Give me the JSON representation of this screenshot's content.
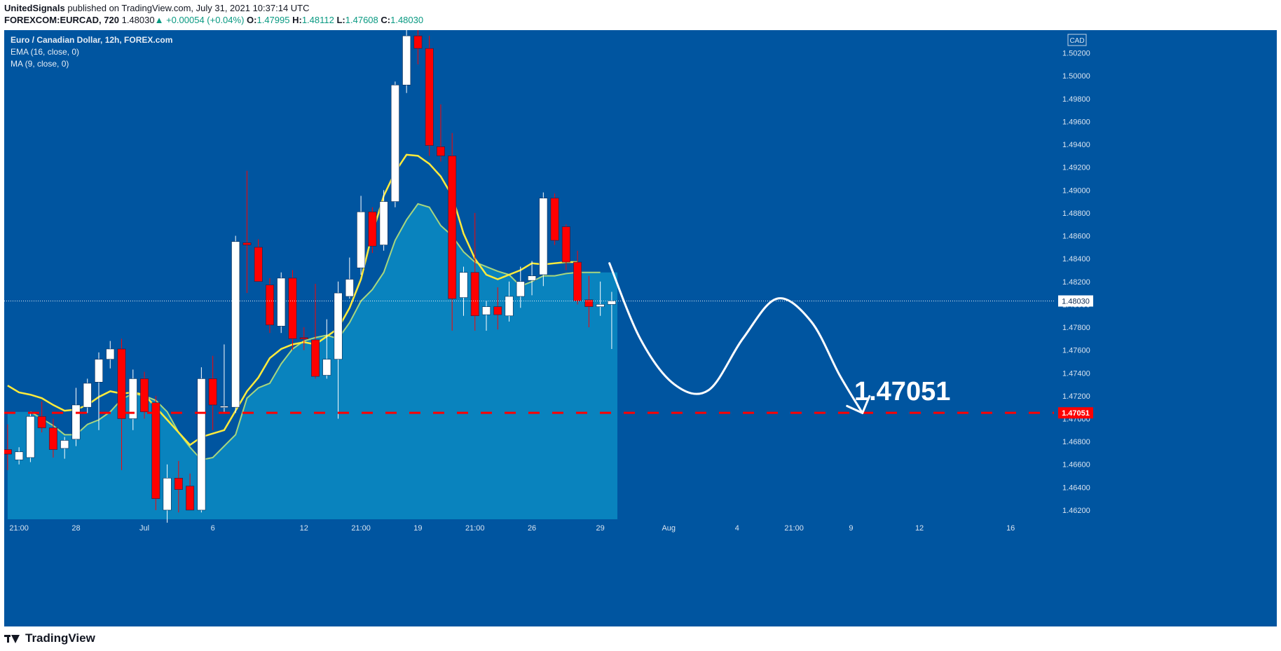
{
  "header": {
    "publisher": "UnitedSignals",
    "published_text": "published on TradingView.com, July 31, 2021 10:37:14 UTC"
  },
  "ohlc": {
    "symbol": "FOREXCOM:EURCAD, 720",
    "last": "1.48030",
    "arrow": "▲",
    "change": "+0.00054 (+0.04%)",
    "o_label": "O:",
    "o": "1.47995",
    "h_label": "H:",
    "h": "1.48112",
    "l_label": "L:",
    "l": "1.47608",
    "c_label": "C:",
    "c": "1.48030"
  },
  "legend": {
    "title": "Euro / Canadian Dollar, 12h, FOREX.com",
    "ema": "EMA (16, close, 0)",
    "ma": "MA (9, close, 0)"
  },
  "footer": {
    "brand": "TradingView"
  },
  "colors": {
    "background": "#0055a0",
    "area_fill": "#0a86c0",
    "up_candle": "#ffffff",
    "down_candle": "#ff0000",
    "ema_line": "#ffeb3b",
    "ma_line": "#a7d67e",
    "target_line": "#ff0000",
    "axis_text": "#d9e4f0"
  },
  "chart_data": {
    "type": "candlestick",
    "currency": "CAD",
    "ylim": [
      1.4612,
      1.504
    ],
    "y_ticks": [
      "1.46200",
      "1.46400",
      "1.46600",
      "1.46800",
      "1.47000",
      "1.47200",
      "1.47400",
      "1.47600",
      "1.47800",
      "1.48000",
      "1.48200",
      "1.48400",
      "1.48600",
      "1.48800",
      "1.49000",
      "1.49200",
      "1.49400",
      "1.49600",
      "1.49800",
      "1.50000",
      "1.50200"
    ],
    "x_ticks": [
      {
        "label": "21:00",
        "index": 1
      },
      {
        "label": "28",
        "index": 6
      },
      {
        "label": "Jul",
        "index": 12
      },
      {
        "label": "6",
        "index": 18
      },
      {
        "label": "12",
        "index": 26
      },
      {
        "label": "21:00",
        "index": 31
      },
      {
        "label": "19",
        "index": 36
      },
      {
        "label": "21:00",
        "index": 41
      },
      {
        "label": "26",
        "index": 46
      },
      {
        "label": "29",
        "index": 52
      },
      {
        "label": "Aug",
        "index": 58
      },
      {
        "label": "4",
        "index": 64
      },
      {
        "label": "21:00",
        "index": 69
      },
      {
        "label": "9",
        "index": 74
      },
      {
        "label": "12",
        "index": 80
      },
      {
        "label": "16",
        "index": 88
      }
    ],
    "x_index_range": [
      -0.3,
      91.8
    ],
    "candles": [
      {
        "o": 1.4673,
        "h": 1.4695,
        "l": 1.4655,
        "c": 1.4669
      },
      {
        "o": 1.4664,
        "h": 1.4675,
        "l": 1.466,
        "c": 1.4671
      },
      {
        "o": 1.4666,
        "h": 1.4705,
        "l": 1.4662,
        "c": 1.4702
      },
      {
        "o": 1.4702,
        "h": 1.4715,
        "l": 1.4688,
        "c": 1.4692
      },
      {
        "o": 1.4692,
        "h": 1.47,
        "l": 1.4666,
        "c": 1.4673
      },
      {
        "o": 1.4674,
        "h": 1.4684,
        "l": 1.4665,
        "c": 1.4681
      },
      {
        "o": 1.4682,
        "h": 1.4727,
        "l": 1.4676,
        "c": 1.4712
      },
      {
        "o": 1.471,
        "h": 1.4735,
        "l": 1.4705,
        "c": 1.4731
      },
      {
        "o": 1.4732,
        "h": 1.4758,
        "l": 1.469,
        "c": 1.4752
      },
      {
        "o": 1.4752,
        "h": 1.4768,
        "l": 1.4744,
        "c": 1.4761
      },
      {
        "o": 1.4761,
        "h": 1.477,
        "l": 1.4655,
        "c": 1.47
      },
      {
        "o": 1.47,
        "h": 1.4743,
        "l": 1.469,
        "c": 1.4735
      },
      {
        "o": 1.4735,
        "h": 1.4741,
        "l": 1.47,
        "c": 1.4706
      },
      {
        "o": 1.4714,
        "h": 1.472,
        "l": 1.462,
        "c": 1.463
      },
      {
        "o": 1.462,
        "h": 1.466,
        "l": 1.4609,
        "c": 1.4648
      },
      {
        "o": 1.4648,
        "h": 1.4663,
        "l": 1.4618,
        "c": 1.4638
      },
      {
        "o": 1.4641,
        "h": 1.4652,
        "l": 1.462,
        "c": 1.462
      },
      {
        "o": 1.462,
        "h": 1.4745,
        "l": 1.4618,
        "c": 1.4735
      },
      {
        "o": 1.4735,
        "h": 1.4755,
        "l": 1.469,
        "c": 1.4712
      },
      {
        "o": 1.471,
        "h": 1.4765,
        "l": 1.4705,
        "c": 1.4711
      },
      {
        "o": 1.471,
        "h": 1.486,
        "l": 1.4705,
        "c": 1.4855
      },
      {
        "o": 1.4854,
        "h": 1.4917,
        "l": 1.481,
        "c": 1.4852
      },
      {
        "o": 1.485,
        "h": 1.4857,
        "l": 1.482,
        "c": 1.482
      },
      {
        "o": 1.4817,
        "h": 1.4823,
        "l": 1.4775,
        "c": 1.4782
      },
      {
        "o": 1.4781,
        "h": 1.4828,
        "l": 1.4775,
        "c": 1.4823
      },
      {
        "o": 1.4823,
        "h": 1.483,
        "l": 1.476,
        "c": 1.477
      },
      {
        "o": 1.4771,
        "h": 1.478,
        "l": 1.476,
        "c": 1.477
      },
      {
        "o": 1.4769,
        "h": 1.4818,
        "l": 1.4735,
        "c": 1.4737
      },
      {
        "o": 1.4738,
        "h": 1.4787,
        "l": 1.4735,
        "c": 1.4752
      },
      {
        "o": 1.4752,
        "h": 1.482,
        "l": 1.47,
        "c": 1.481
      },
      {
        "o": 1.4807,
        "h": 1.4841,
        "l": 1.4805,
        "c": 1.4822
      },
      {
        "o": 1.4832,
        "h": 1.4895,
        "l": 1.4826,
        "c": 1.4881
      },
      {
        "o": 1.4881,
        "h": 1.4885,
        "l": 1.4845,
        "c": 1.4851
      },
      {
        "o": 1.4852,
        "h": 1.49,
        "l": 1.4847,
        "c": 1.489
      },
      {
        "o": 1.489,
        "h": 1.4995,
        "l": 1.4885,
        "c": 1.4992
      },
      {
        "o": 1.4992,
        "h": 1.504,
        "l": 1.4985,
        "c": 1.5035
      },
      {
        "o": 1.5035,
        "h": 1.504,
        "l": 1.501,
        "c": 1.5024
      },
      {
        "o": 1.5024,
        "h": 1.5035,
        "l": 1.493,
        "c": 1.4939
      },
      {
        "o": 1.4938,
        "h": 1.4975,
        "l": 1.4925,
        "c": 1.493
      },
      {
        "o": 1.493,
        "h": 1.495,
        "l": 1.4777,
        "c": 1.4805
      },
      {
        "o": 1.4806,
        "h": 1.4833,
        "l": 1.479,
        "c": 1.4828
      },
      {
        "o": 1.4828,
        "h": 1.488,
        "l": 1.4777,
        "c": 1.479
      },
      {
        "o": 1.4791,
        "h": 1.4803,
        "l": 1.4777,
        "c": 1.4798
      },
      {
        "o": 1.4798,
        "h": 1.4815,
        "l": 1.4778,
        "c": 1.4791
      },
      {
        "o": 1.479,
        "h": 1.482,
        "l": 1.4785,
        "c": 1.4807
      },
      {
        "o": 1.4807,
        "h": 1.4833,
        "l": 1.4797,
        "c": 1.482
      },
      {
        "o": 1.4821,
        "h": 1.4838,
        "l": 1.4808,
        "c": 1.4825
      },
      {
        "o": 1.4826,
        "h": 1.4898,
        "l": 1.4816,
        "c": 1.4893
      },
      {
        "o": 1.4893,
        "h": 1.4897,
        "l": 1.4852,
        "c": 1.4856
      },
      {
        "o": 1.4868,
        "h": 1.487,
        "l": 1.483,
        "c": 1.4837
      },
      {
        "o": 1.4837,
        "h": 1.4847,
        "l": 1.48,
        "c": 1.4803
      },
      {
        "o": 1.4804,
        "h": 1.4825,
        "l": 1.478,
        "c": 1.4798
      },
      {
        "o": 1.4798,
        "h": 1.482,
        "l": 1.479,
        "c": 1.48
      },
      {
        "o": 1.48,
        "h": 1.4811,
        "l": 1.4761,
        "c": 1.4803
      }
    ],
    "ema": [
      1.4729,
      1.4723,
      1.4721,
      1.4718,
      1.4712,
      1.4707,
      1.4708,
      1.4712,
      1.4719,
      1.4724,
      1.4722,
      1.4723,
      1.4721,
      1.471,
      1.4699,
      1.4688,
      1.4677,
      1.4684,
      1.4687,
      1.469,
      1.4707,
      1.4724,
      1.4736,
      1.4753,
      1.4761,
      1.4765,
      1.4767,
      1.4765,
      1.4772,
      1.4779,
      1.4797,
      1.4822,
      1.4862,
      1.4895,
      1.4916,
      1.4931,
      1.493,
      1.4923,
      1.4912,
      1.4895,
      1.4862,
      1.484,
      1.4826,
      1.4822,
      1.4826,
      1.483,
      1.4836,
      1.4835,
      1.4836,
      1.4837,
      1.4837
    ],
    "ema_start_index": 0,
    "ma": [
      1.4706,
      1.47,
      1.4694,
      1.4686,
      1.4686,
      1.4695,
      1.4699,
      1.4706,
      1.4717,
      1.4722,
      1.472,
      1.4716,
      1.4706,
      1.4688,
      1.4675,
      1.4664,
      1.4666,
      1.4676,
      1.4686,
      1.4718,
      1.4727,
      1.4731,
      1.4748,
      1.4761,
      1.4768,
      1.4771,
      1.4773,
      1.477,
      1.4784,
      1.4803,
      1.4813,
      1.4828,
      1.4856,
      1.4874,
      1.4888,
      1.4885,
      1.4869,
      1.486,
      1.4846,
      1.4837,
      1.4833,
      1.4829,
      1.4826,
      1.4816,
      1.482,
      1.4825,
      1.4825,
      1.4827,
      1.4828,
      1.4828,
      1.4828
    ],
    "ma_start_index": 2,
    "last_price": {
      "value": 1.4803,
      "label": "1.48030"
    },
    "target": {
      "value": 1.47051,
      "label": "1.47051"
    },
    "projection": [
      {
        "x": 52.8,
        "y": 1.4836
      },
      {
        "x": 55.5,
        "y": 1.477
      },
      {
        "x": 58.5,
        "y": 1.473
      },
      {
        "x": 61.5,
        "y": 1.4725
      },
      {
        "x": 64.5,
        "y": 1.477
      },
      {
        "x": 67.5,
        "y": 1.4805
      },
      {
        "x": 70.5,
        "y": 1.4785
      },
      {
        "x": 73.0,
        "y": 1.4738
      },
      {
        "x": 75.0,
        "y": 1.4705
      }
    ]
  }
}
